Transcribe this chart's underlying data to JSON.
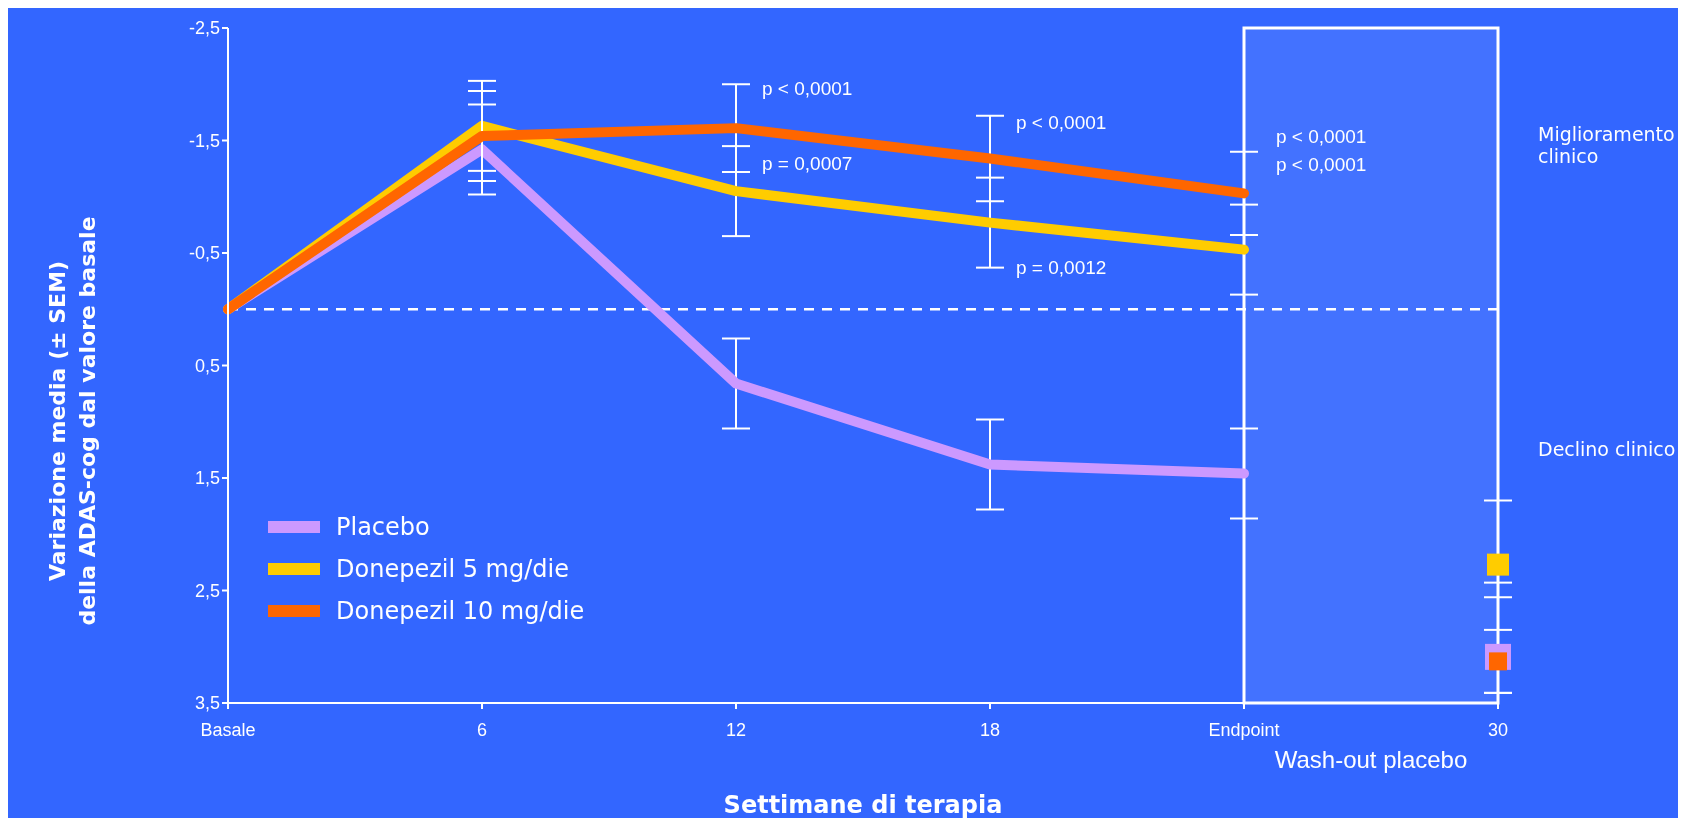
{
  "chart_data": {
    "type": "line",
    "xlabel": "Settimane di terapia",
    "ylabel": "Variazione media (± SEM)\ndella ADAS-cog dal valore basale",
    "categories": [
      "Basale",
      "6",
      "12",
      "18",
      "Endpoint",
      "30"
    ],
    "ylim": [
      3.5,
      -2.5
    ],
    "yticks": [
      {
        "value": -2.5,
        "label": "-2,5"
      },
      {
        "value": -1.5,
        "label": "-1,5"
      },
      {
        "value": -0.5,
        "label": "-0,5"
      },
      {
        "value": 0.5,
        "label": "0,5"
      },
      {
        "value": 1.5,
        "label": "1,5"
      },
      {
        "value": 2.5,
        "label": "2,5"
      },
      {
        "value": 3.5,
        "label": "3,5"
      }
    ],
    "grid": false,
    "legend": "bottom left",
    "line_style": "solid",
    "series": [
      {
        "name": "Placebo",
        "color": "#cc99ff",
        "values": [
          0,
          -1.42,
          0.66,
          1.38,
          1.46,
          null
        ],
        "errors": [
          null,
          0.4,
          0.4,
          0.4,
          0.4,
          null
        ]
      },
      {
        "name": "Donepezil 5 mg/die",
        "color": "#ffcc00",
        "values": [
          0,
          -1.63,
          -1.05,
          -0.77,
          -0.53,
          null
        ],
        "errors": [
          null,
          0.4,
          0.4,
          0.4,
          0.4,
          null
        ]
      },
      {
        "name": "Donepezil 10 mg/die",
        "color": "#ff6600",
        "values": [
          0,
          -1.54,
          -1.61,
          -1.34,
          -1.03,
          null
        ],
        "errors": [
          null,
          0.4,
          0.39,
          0.38,
          0.37,
          null
        ]
      },
      {
        "type": "scatter",
        "marker": "square",
        "color": "#cc99ff",
        "x": [
          "30"
        ],
        "values": [
          3.09
        ],
        "errors": [
          [
            2.56,
            3.41
          ]
        ]
      },
      {
        "type": "scatter",
        "marker": "square",
        "color": "#ffcc00",
        "x": [
          "30"
        ],
        "values": [
          2.27
        ],
        "errors": [
          [
            1.7,
            2.85
          ]
        ]
      },
      {
        "type": "scatter",
        "marker": "square",
        "color": "#ff6600",
        "x": [
          "30"
        ],
        "values": [
          3.13
        ],
        "errors": [
          [
            2.43,
            3.41
          ]
        ]
      }
    ],
    "ref_lines": [
      {
        "axis": "y",
        "value": 0,
        "color": "#ffffff",
        "line_style": "dashed"
      }
    ],
    "bands": [
      {
        "axis": "x",
        "from": "Endpoint",
        "to": "30",
        "label": "Wash-out placebo",
        "color": "#ffffff"
      }
    ],
    "annotations": [
      {
        "text": "p < 0,0001",
        "x": "12",
        "y": -1.96
      },
      {
        "text": "p = 0,0007",
        "x": "12",
        "y": -1.3
      },
      {
        "text": "p < 0,0001",
        "x": "18",
        "y": -1.66
      },
      {
        "text": "p = 0,0012",
        "x": "18",
        "y": -0.37
      },
      "p < 0,0001",
      "p < 0,0001",
      "Miglioramento clinico",
      "Declino clinico"
    ]
  }
}
